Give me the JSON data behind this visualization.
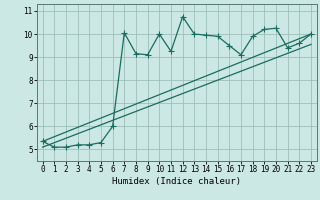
{
  "xlabel": "Humidex (Indice chaleur)",
  "bg_color": "#cce8e4",
  "grid_color": "#9dbfba",
  "line_color": "#1a6b60",
  "xlim": [
    -0.5,
    23.5
  ],
  "ylim": [
    4.5,
    11.3
  ],
  "xticks": [
    0,
    1,
    2,
    3,
    4,
    5,
    6,
    7,
    8,
    9,
    10,
    11,
    12,
    13,
    14,
    15,
    16,
    17,
    18,
    19,
    20,
    21,
    22,
    23
  ],
  "yticks": [
    5,
    6,
    7,
    8,
    9,
    10,
    11
  ],
  "series1_x": [
    0,
    1,
    2,
    3,
    4,
    5,
    6,
    7,
    8,
    9,
    10,
    11,
    12,
    13,
    14,
    15,
    16,
    17,
    18,
    19,
    20,
    21,
    22,
    23
  ],
  "series1_y": [
    5.35,
    5.1,
    5.1,
    5.2,
    5.2,
    5.3,
    6.0,
    10.05,
    9.15,
    9.1,
    10.0,
    9.25,
    10.75,
    10.0,
    9.95,
    9.9,
    9.5,
    9.1,
    9.9,
    10.2,
    10.25,
    9.4,
    9.6,
    10.0
  ],
  "series2_x": [
    0,
    23
  ],
  "series2_y": [
    5.35,
    10.0
  ],
  "series3_x": [
    0,
    23
  ],
  "series3_y": [
    5.1,
    9.55
  ],
  "marker": "+",
  "markersize": 4,
  "markeredgewidth": 0.8,
  "linewidth": 0.9,
  "tick_fontsize": 5.5,
  "xlabel_fontsize": 6.5
}
